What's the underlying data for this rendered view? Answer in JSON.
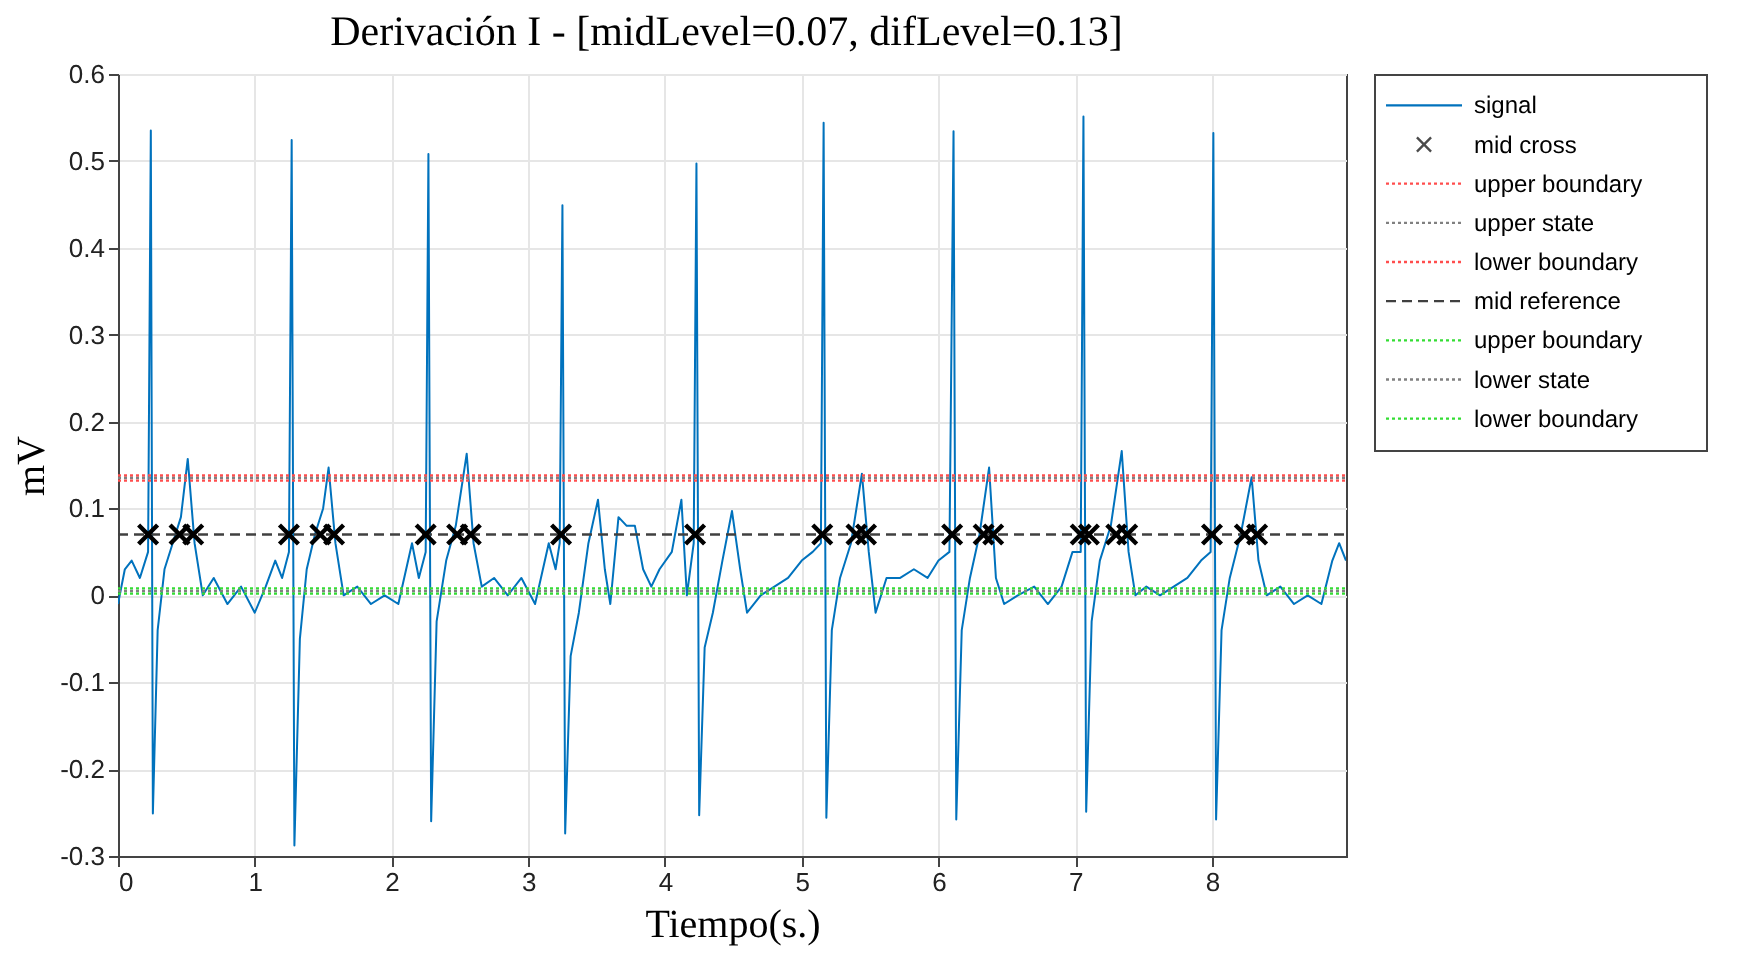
{
  "chart_data": {
    "type": "line",
    "title": "Derivación I - [midLevel=0.07, difLevel=0.13]",
    "xlabel": "Tiempo(s.)",
    "ylabel": "mV",
    "xlim": [
      0,
      8.98
    ],
    "ylim": [
      -0.3,
      0.6
    ],
    "xticks": [
      0,
      1,
      2,
      3,
      4,
      5,
      6,
      7,
      8
    ],
    "yticks": [
      -0.3,
      -0.2,
      -0.1,
      0,
      0.1,
      0.2,
      0.3,
      0.4,
      0.5,
      0.6
    ],
    "grid": true,
    "legend": "right",
    "line_style": "solid",
    "series": [
      {
        "name": "signal",
        "color": "#0072bd",
        "x": [
          0,
          0.05,
          0.1,
          0.16,
          0.22,
          0.24,
          0.255,
          0.29,
          0.34,
          0.4,
          0.46,
          0.51,
          0.56,
          0.62,
          0.7,
          0.8,
          0.9,
          1.0,
          1.08,
          1.15,
          1.2,
          1.25,
          1.27,
          1.29,
          1.33,
          1.38,
          1.44,
          1.5,
          1.54,
          1.59,
          1.65,
          1.75,
          1.85,
          1.95,
          2.05,
          2.15,
          2.2,
          2.25,
          2.27,
          2.29,
          2.33,
          2.4,
          2.47,
          2.55,
          2.6,
          2.66,
          2.75,
          2.85,
          2.95,
          3.05,
          3.15,
          3.2,
          3.23,
          3.25,
          3.27,
          3.31,
          3.37,
          3.44,
          3.51,
          3.56,
          3.6,
          3.66,
          3.72,
          3.78,
          3.84,
          3.9,
          3.96,
          4.05,
          4.12,
          4.16,
          4.21,
          4.23,
          4.25,
          4.29,
          4.35,
          4.42,
          4.49,
          4.55,
          4.6,
          4.7,
          4.8,
          4.9,
          5.0,
          5.08,
          5.14,
          5.16,
          5.18,
          5.22,
          5.28,
          5.36,
          5.44,
          5.49,
          5.54,
          5.62,
          5.72,
          5.82,
          5.92,
          6.0,
          6.08,
          6.11,
          6.13,
          6.17,
          6.23,
          6.3,
          6.37,
          6.42,
          6.48,
          6.58,
          6.7,
          6.8,
          6.9,
          6.98,
          7.04,
          7.06,
          7.08,
          7.12,
          7.18,
          7.26,
          7.34,
          7.39,
          7.44,
          7.52,
          7.62,
          7.72,
          7.82,
          7.92,
          7.99,
          8.01,
          8.03,
          8.07,
          8.13,
          8.21,
          8.29,
          8.34,
          8.4,
          8.5,
          8.6,
          8.7,
          8.8,
          8.88,
          8.93,
          8.98
        ],
        "values": [
          -0.01,
          0.03,
          0.04,
          0.02,
          0.05,
          0.535,
          -0.251,
          -0.04,
          0.03,
          0.06,
          0.09,
          0.157,
          0.06,
          0.0,
          0.02,
          -0.01,
          0.01,
          -0.02,
          0.01,
          0.04,
          0.02,
          0.05,
          0.524,
          -0.288,
          -0.05,
          0.03,
          0.07,
          0.1,
          0.147,
          0.06,
          0.0,
          0.01,
          -0.01,
          0.0,
          -0.01,
          0.06,
          0.02,
          0.05,
          0.508,
          -0.26,
          -0.03,
          0.04,
          0.08,
          0.163,
          0.06,
          0.01,
          0.02,
          0.0,
          0.02,
          -0.01,
          0.06,
          0.03,
          0.06,
          0.449,
          -0.274,
          -0.07,
          -0.02,
          0.06,
          0.11,
          0.03,
          -0.01,
          0.09,
          0.08,
          0.08,
          0.03,
          0.01,
          0.03,
          0.05,
          0.11,
          0.0,
          0.06,
          0.497,
          -0.253,
          -0.06,
          -0.02,
          0.04,
          0.097,
          0.03,
          -0.02,
          0.0,
          0.01,
          0.02,
          0.04,
          0.05,
          0.06,
          0.544,
          -0.256,
          -0.04,
          0.02,
          0.06,
          0.14,
          0.05,
          -0.02,
          0.02,
          0.02,
          0.03,
          0.02,
          0.04,
          0.05,
          0.534,
          -0.258,
          -0.04,
          0.02,
          0.07,
          0.147,
          0.02,
          -0.01,
          0.0,
          0.01,
          -0.01,
          0.01,
          0.05,
          0.05,
          0.551,
          -0.249,
          -0.03,
          0.04,
          0.08,
          0.166,
          0.05,
          0.0,
          0.01,
          0.0,
          0.01,
          0.02,
          0.04,
          0.05,
          0.532,
          -0.258,
          -0.04,
          0.02,
          0.07,
          0.136,
          0.04,
          0.0,
          0.01,
          -0.01,
          0.0,
          -0.01,
          0.04,
          0.06,
          0.04
        ]
      },
      {
        "name": "mid cross",
        "type": "scatter",
        "marker": "cross",
        "color": "#000000",
        "x": [
          0.22,
          0.45,
          0.55,
          1.25,
          1.48,
          1.58,
          2.25,
          2.48,
          2.58,
          3.24,
          4.22,
          5.15,
          5.4,
          5.47,
          6.1,
          6.33,
          6.4,
          7.04,
          7.1,
          7.3,
          7.38,
          8.0,
          8.24,
          8.33
        ],
        "values": [
          0.07,
          0.07,
          0.07,
          0.07,
          0.07,
          0.07,
          0.07,
          0.07,
          0.07,
          0.07,
          0.07,
          0.07,
          0.07,
          0.07,
          0.07,
          0.07,
          0.07,
          0.07,
          0.07,
          0.07,
          0.07,
          0.07,
          0.07,
          0.07
        ]
      },
      {
        "name": "upper boundary",
        "color": "#ff4d4d",
        "line_style": "dotted",
        "x": [
          0,
          8.98
        ],
        "values": [
          0.138,
          0.138
        ]
      },
      {
        "name": "upper state",
        "color": "#808080",
        "line_style": "dotted",
        "x": [
          0,
          8.98
        ],
        "values": [
          0.135,
          0.135
        ]
      },
      {
        "name": "lower boundary",
        "color": "#ff4d4d",
        "line_style": "dotted",
        "x": [
          0,
          8.98
        ],
        "values": [
          0.132,
          0.132
        ]
      },
      {
        "name": "mid reference",
        "color": "#404040",
        "line_style": "dashed",
        "x": [
          0,
          8.98
        ],
        "values": [
          0.07,
          0.07
        ]
      },
      {
        "name": "upper boundary",
        "color": "#33dd33",
        "line_style": "dotted",
        "x": [
          0,
          8.98
        ],
        "values": [
          0.008,
          0.008
        ]
      },
      {
        "name": "lower state",
        "color": "#808080",
        "line_style": "dotted",
        "x": [
          0,
          8.98
        ],
        "values": [
          0.005,
          0.005
        ]
      },
      {
        "name": "lower boundary",
        "color": "#33dd33",
        "line_style": "dotted",
        "x": [
          0,
          8.98
        ],
        "values": [
          0.002,
          0.002
        ]
      }
    ]
  }
}
